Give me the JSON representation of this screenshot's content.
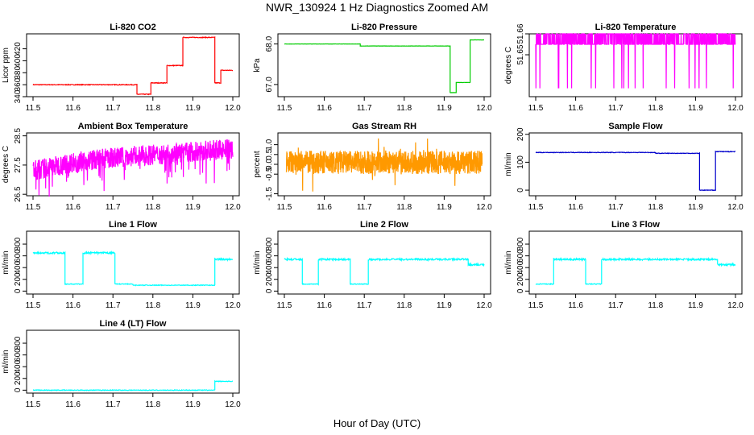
{
  "page": {
    "title": "NWR_130924  1 Hz Diagnostics Zoomed AM",
    "xlabel": "Hour of Day (UTC)"
  },
  "chart_data": [
    {
      "id": "co2",
      "type": "line",
      "title": "Li-820 CO2",
      "ylabel": "Licor ppm",
      "color": "#ff0000",
      "xlim": [
        11.5,
        12.0
      ],
      "ylim": [
        340,
        445
      ],
      "xticks": [
        "11.5",
        "11.6",
        "11.7",
        "11.8",
        "11.9",
        "12.0"
      ],
      "yticks": [
        "340",
        "360",
        "380",
        "400",
        "420"
      ],
      "series": [
        {
          "x": [
            11.5,
            11.76,
            11.76,
            11.85,
            11.85,
            11.88,
            11.88,
            11.96,
            11.96,
            11.97,
            11.97,
            12.0
          ],
          "y": [
            360,
            360,
            356,
            356,
            405,
            405,
            439,
            439,
            385,
            385,
            387,
            387
          ],
          "steps": [
            [
              11.5,
              11.76,
              360
            ],
            [
              11.76,
              11.795,
              344
            ],
            [
              11.795,
              11.835,
              363
            ],
            [
              11.835,
              11.875,
              392
            ],
            [
              11.875,
              11.955,
              439
            ],
            [
              11.955,
              11.97,
              363
            ],
            [
              11.97,
              12.0,
              384
            ]
          ]
        }
      ]
    },
    {
      "id": "pressure",
      "type": "line",
      "title": "Li-820 Pressure",
      "ylabel": "kPa",
      "color": "#00cc00",
      "xlim": [
        11.5,
        12.0
      ],
      "ylim": [
        66.7,
        68.25
      ],
      "xticks": [
        "11.5",
        "11.6",
        "11.7",
        "11.8",
        "11.9",
        "12.0"
      ],
      "yticks": [
        "67.0",
        "68.0"
      ],
      "series": [
        {
          "steps": [
            [
              11.5,
              11.69,
              68.0
            ],
            [
              11.69,
              11.8,
              67.95
            ],
            [
              11.8,
              11.915,
              67.95
            ],
            [
              11.915,
              11.93,
              66.8
            ],
            [
              11.93,
              11.965,
              67.05
            ],
            [
              11.965,
              12.0,
              68.1
            ]
          ]
        }
      ]
    },
    {
      "id": "li_temp",
      "type": "line",
      "title": "Li-820 Temperature",
      "ylabel": "degrees C",
      "color": "#ff00ff",
      "xlim": [
        11.5,
        12.0
      ],
      "ylim": [
        51.63,
        51.66
      ],
      "xticks": [
        "11.5",
        "11.6",
        "11.7",
        "11.8",
        "11.9",
        "12.0"
      ],
      "yticks": [
        "51.65",
        "51.66"
      ],
      "series": [
        {
          "description_values": [
            51.655,
            51.66
          ]
        }
      ]
    },
    {
      "id": "box_temp",
      "type": "line",
      "title": "Ambient Box Temperature",
      "ylabel": "degrees C",
      "color": "#ff00ff",
      "xlim": [
        11.5,
        12.0
      ],
      "ylim": [
        26.45,
        28.6
      ],
      "xticks": [
        "11.5",
        "11.6",
        "11.7",
        "11.8",
        "11.9",
        "12.0"
      ],
      "yticks": [
        "26.5",
        "27.5",
        "28.5"
      ],
      "series": [
        {
          "trend": [
            [
              11.5,
              27.3
            ],
            [
              11.6,
              27.6
            ],
            [
              11.7,
              27.75
            ],
            [
              11.8,
              27.85
            ],
            [
              11.9,
              27.95
            ],
            [
              12.0,
              28.05
            ]
          ]
        }
      ]
    },
    {
      "id": "rh",
      "type": "line",
      "title": "Gas Stream RH",
      "ylabel": "percent",
      "color": "#ff9900",
      "xlim": [
        11.5,
        12.0
      ],
      "ylim": [
        -1.6,
        1.6
      ],
      "xticks": [
        "11.5",
        "11.6",
        "11.7",
        "11.8",
        "11.9",
        "12.0"
      ],
      "yticks": [
        "-1.5",
        "-0.5",
        "0.0",
        "0.5",
        "1.0"
      ],
      "series": [
        {
          "mean": 0.1,
          "amplitude": 0.6
        }
      ]
    },
    {
      "id": "sample_flow",
      "type": "line",
      "title": "Sample Flow",
      "ylabel": "ml/min",
      "color": "#0000cc",
      "xlim": [
        11.5,
        12.0
      ],
      "ylim": [
        -20,
        205
      ],
      "xticks": [
        "11.5",
        "11.6",
        "11.7",
        "11.8",
        "11.9",
        "12.0"
      ],
      "yticks": [
        "0",
        "100",
        "200"
      ],
      "series": [
        {
          "steps": [
            [
              11.5,
              11.8,
              135
            ],
            [
              11.8,
              11.91,
              132
            ],
            [
              11.91,
              11.95,
              0
            ],
            [
              11.95,
              12.0,
              138
            ]
          ]
        }
      ]
    },
    {
      "id": "line1",
      "type": "line",
      "title": "Line 1 Flow",
      "ylabel": "ml/min",
      "color": "#00ffff",
      "xlim": [
        11.5,
        12.0
      ],
      "ylim": [
        -50,
        1020
      ],
      "xticks": [
        "11.5",
        "11.6",
        "11.7",
        "11.8",
        "11.9",
        "12.0"
      ],
      "yticks": [
        "0",
        "200",
        "400",
        "600",
        "800"
      ],
      "series": [
        {
          "steps": [
            [
              11.5,
              11.58,
              650
            ],
            [
              11.58,
              11.625,
              120
            ],
            [
              11.625,
              11.705,
              650
            ],
            [
              11.705,
              11.75,
              120
            ],
            [
              11.75,
              11.955,
              100
            ],
            [
              11.955,
              12.0,
              540
            ]
          ]
        }
      ]
    },
    {
      "id": "line2",
      "type": "line",
      "title": "Line 2 Flow",
      "ylabel": "ml/min",
      "color": "#00ffff",
      "xlim": [
        11.5,
        12.0
      ],
      "ylim": [
        -50,
        1020
      ],
      "xticks": [
        "11.5",
        "11.6",
        "11.7",
        "11.8",
        "11.9",
        "12.0"
      ],
      "yticks": [
        "0",
        "200",
        "400",
        "600",
        "800"
      ],
      "series": [
        {
          "steps": [
            [
              11.5,
              11.545,
              540
            ],
            [
              11.545,
              11.585,
              120
            ],
            [
              11.585,
              11.665,
              540
            ],
            [
              11.665,
              11.71,
              120
            ],
            [
              11.71,
              11.96,
              540
            ],
            [
              11.96,
              12.0,
              450
            ]
          ]
        }
      ]
    },
    {
      "id": "line3",
      "type": "line",
      "title": "Line 3 Flow",
      "ylabel": "ml/min",
      "color": "#00ffff",
      "xlim": [
        11.5,
        12.0
      ],
      "ylim": [
        -50,
        1020
      ],
      "xticks": [
        "11.5",
        "11.6",
        "11.7",
        "11.8",
        "11.9",
        "12.0"
      ],
      "yticks": [
        "0",
        "200",
        "400",
        "600",
        "800"
      ],
      "series": [
        {
          "steps": [
            [
              11.5,
              11.545,
              120
            ],
            [
              11.545,
              11.625,
              540
            ],
            [
              11.625,
              11.665,
              120
            ],
            [
              11.665,
              11.955,
              540
            ],
            [
              11.955,
              12.0,
              450
            ]
          ]
        }
      ]
    },
    {
      "id": "line4",
      "type": "line",
      "title": "Line 4 (LT) Flow",
      "ylabel": "ml/min",
      "color": "#00ffff",
      "xlim": [
        11.5,
        12.0
      ],
      "ylim": [
        -50,
        1020
      ],
      "xticks": [
        "11.5",
        "11.6",
        "11.7",
        "11.8",
        "11.9",
        "12.0"
      ],
      "yticks": [
        "0",
        "200",
        "400",
        "600",
        "800"
      ],
      "series": [
        {
          "steps": [
            [
              11.5,
              11.955,
              0
            ],
            [
              11.955,
              12.0,
              150
            ]
          ]
        }
      ]
    }
  ]
}
